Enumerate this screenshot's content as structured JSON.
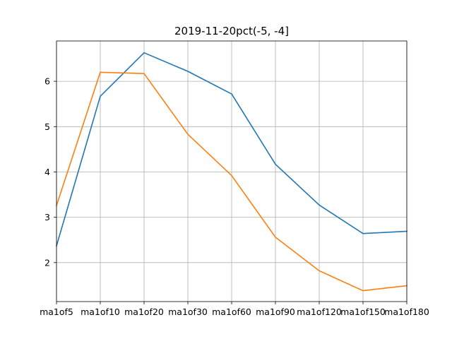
{
  "chart_data": {
    "type": "line",
    "title": "2019-11-20pct(-5, -4]",
    "categories": [
      "ma1of5",
      "ma1of10",
      "ma1of20",
      "ma1of30",
      "ma1of60",
      "ma1of90",
      "ma1of120",
      "ma1of150",
      "ma1of180"
    ],
    "series": [
      {
        "color": "#1f77b4",
        "values": [
          2.37,
          5.67,
          6.63,
          6.22,
          5.72,
          4.17,
          3.27,
          2.64,
          2.69
        ]
      },
      {
        "color": "#ff7f0e",
        "values": [
          3.26,
          6.2,
          6.17,
          4.83,
          3.92,
          2.56,
          1.82,
          1.38,
          1.49
        ]
      }
    ],
    "yticks": [
      2,
      3,
      4,
      5,
      6
    ],
    "ylim": [
      1.14,
      6.89
    ],
    "xlabel": "",
    "ylabel": "",
    "grid": true,
    "legend": "none"
  }
}
